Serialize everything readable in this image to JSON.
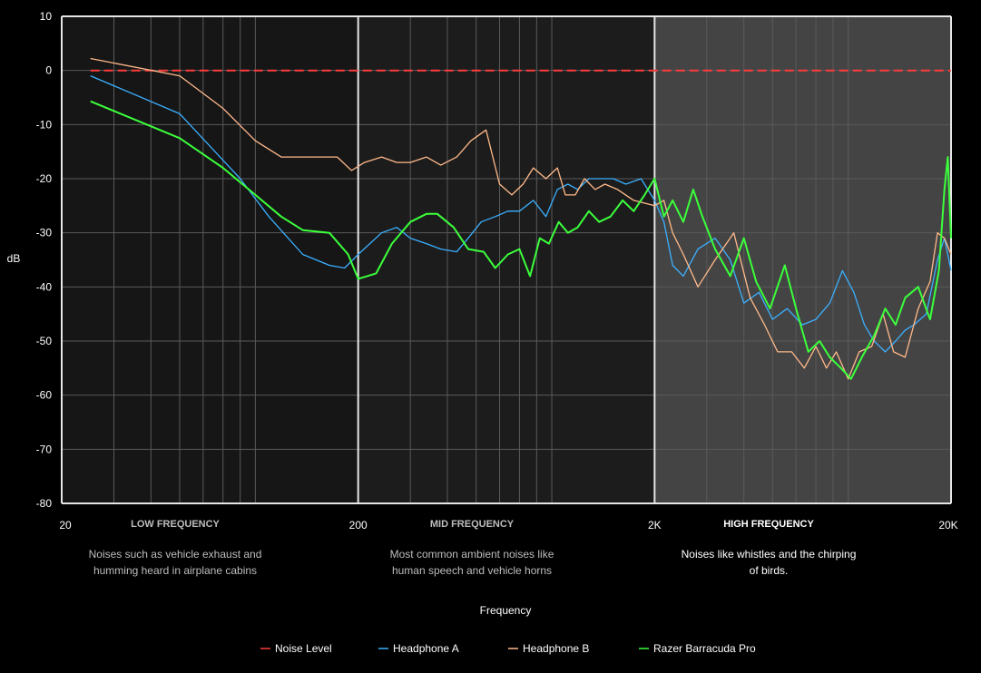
{
  "chart_data": {
    "type": "line",
    "xscale": "log",
    "xlim": [
      20,
      20000
    ],
    "ylim": [
      -80,
      10
    ],
    "ylabel": "dB",
    "xlabel": "Frequency",
    "xticks": [
      {
        "value": 20,
        "label": "20"
      },
      {
        "value": 200,
        "label": "200"
      },
      {
        "value": 2000,
        "label": "2K"
      },
      {
        "value": 20000,
        "label": "20K"
      }
    ],
    "yticks": [
      10,
      0,
      -10,
      -20,
      -30,
      -40,
      -50,
      -60,
      -70,
      -80
    ],
    "grid": true,
    "legend_placement": "bottom-center",
    "bands": [
      {
        "from": 20,
        "to": 200,
        "title": "LOW FREQUENCY",
        "description": [
          "Noises such as vehicle exhaust and",
          "humming heard in airplane cabins"
        ],
        "highlight": false,
        "color": "#161616"
      },
      {
        "from": 200,
        "to": 2000,
        "title": "MID FREQUENCY",
        "description": [
          "Most common ambient noises like",
          "human speech and vehicle horns"
        ],
        "highlight": false,
        "color": "#1c1c1c"
      },
      {
        "from": 2000,
        "to": 20000,
        "title": "HIGH FREQUENCY",
        "description": [
          "Noises like whistles and the chirping",
          "of birds."
        ],
        "highlight": true,
        "color": "#444444"
      }
    ],
    "series": [
      {
        "name": "Noise Level",
        "color": "#ff3b3b",
        "dashed": true,
        "points": [
          [
            25,
            0
          ],
          [
            20000,
            0
          ]
        ]
      },
      {
        "name": "Headphone A",
        "color": "#3bb0ff",
        "dashed": false,
        "points": [
          [
            25,
            -1
          ],
          [
            50,
            -8
          ],
          [
            80,
            -20
          ],
          [
            100,
            -27
          ],
          [
            130,
            -34
          ],
          [
            160,
            -36
          ],
          [
            180,
            -36.5
          ],
          [
            200,
            -34
          ],
          [
            240,
            -30
          ],
          [
            270,
            -29
          ],
          [
            300,
            -31
          ],
          [
            340,
            -32
          ],
          [
            380,
            -33
          ],
          [
            430,
            -33.5
          ],
          [
            470,
            -31
          ],
          [
            520,
            -28
          ],
          [
            580,
            -27
          ],
          [
            640,
            -26
          ],
          [
            700,
            -26
          ],
          [
            780,
            -24
          ],
          [
            860,
            -27
          ],
          [
            940,
            -22
          ],
          [
            1020,
            -21
          ],
          [
            1100,
            -22
          ],
          [
            1200,
            -20
          ],
          [
            1300,
            -20
          ],
          [
            1450,
            -20
          ],
          [
            1600,
            -21
          ],
          [
            1800,
            -20
          ],
          [
            2000,
            -24
          ],
          [
            2150,
            -28
          ],
          [
            2300,
            -36
          ],
          [
            2500,
            -38
          ],
          [
            2800,
            -33
          ],
          [
            3200,
            -31
          ],
          [
            3600,
            -35
          ],
          [
            4000,
            -43
          ],
          [
            4500,
            -41
          ],
          [
            5000,
            -46
          ],
          [
            5600,
            -44
          ],
          [
            6300,
            -47
          ],
          [
            7000,
            -46
          ],
          [
            7800,
            -43
          ],
          [
            8600,
            -37
          ],
          [
            9400,
            -41
          ],
          [
            10200,
            -47
          ],
          [
            11000,
            -50
          ],
          [
            12000,
            -52
          ],
          [
            13000,
            -50
          ],
          [
            14000,
            -48
          ],
          [
            15000,
            -47
          ],
          [
            16500,
            -45
          ],
          [
            18000,
            -35
          ],
          [
            19000,
            -31
          ],
          [
            20000,
            -37
          ]
        ]
      },
      {
        "name": "Headphone B",
        "color": "#ffb98a",
        "dashed": false,
        "points": [
          [
            25,
            2.2
          ],
          [
            50,
            -1
          ],
          [
            70,
            -7
          ],
          [
            90,
            -13
          ],
          [
            110,
            -16
          ],
          [
            140,
            -16
          ],
          [
            170,
            -16
          ],
          [
            190,
            -18.5
          ],
          [
            210,
            -17
          ],
          [
            240,
            -16
          ],
          [
            270,
            -17
          ],
          [
            300,
            -17
          ],
          [
            340,
            -16
          ],
          [
            380,
            -17.5
          ],
          [
            430,
            -16
          ],
          [
            480,
            -13
          ],
          [
            540,
            -11
          ],
          [
            600,
            -21
          ],
          [
            660,
            -23
          ],
          [
            720,
            -21
          ],
          [
            780,
            -18
          ],
          [
            860,
            -20
          ],
          [
            940,
            -18
          ],
          [
            1000,
            -23
          ],
          [
            1080,
            -23
          ],
          [
            1160,
            -20
          ],
          [
            1260,
            -22
          ],
          [
            1360,
            -21
          ],
          [
            1500,
            -22
          ],
          [
            1700,
            -24
          ],
          [
            2000,
            -25
          ],
          [
            2150,
            -24
          ],
          [
            2300,
            -30
          ],
          [
            2500,
            -34
          ],
          [
            2800,
            -40
          ],
          [
            3200,
            -35
          ],
          [
            3700,
            -30
          ],
          [
            4200,
            -42
          ],
          [
            4700,
            -47
          ],
          [
            5200,
            -52
          ],
          [
            5800,
            -52
          ],
          [
            6400,
            -55
          ],
          [
            7000,
            -51
          ],
          [
            7600,
            -55
          ],
          [
            8200,
            -52
          ],
          [
            9000,
            -57
          ],
          [
            9800,
            -52
          ],
          [
            10800,
            -51
          ],
          [
            11800,
            -45
          ],
          [
            12800,
            -52
          ],
          [
            14000,
            -53
          ],
          [
            15500,
            -44
          ],
          [
            17000,
            -39
          ],
          [
            18000,
            -30
          ],
          [
            19000,
            -31
          ],
          [
            20000,
            -34
          ]
        ]
      },
      {
        "name": "Razer Barracuda Pro",
        "color": "#3bff3b",
        "dashed": false,
        "points": [
          [
            25,
            -5.7
          ],
          [
            50,
            -12.5
          ],
          [
            70,
            -18
          ],
          [
            90,
            -23
          ],
          [
            110,
            -27
          ],
          [
            130,
            -29.5
          ],
          [
            160,
            -30
          ],
          [
            185,
            -34
          ],
          [
            200,
            -38.5
          ],
          [
            230,
            -37.5
          ],
          [
            260,
            -32
          ],
          [
            300,
            -28
          ],
          [
            340,
            -26.5
          ],
          [
            370,
            -26.5
          ],
          [
            420,
            -29
          ],
          [
            470,
            -33
          ],
          [
            530,
            -33.5
          ],
          [
            580,
            -36.5
          ],
          [
            640,
            -34
          ],
          [
            700,
            -33
          ],
          [
            760,
            -38
          ],
          [
            820,
            -31
          ],
          [
            880,
            -32
          ],
          [
            950,
            -28
          ],
          [
            1020,
            -30
          ],
          [
            1100,
            -29
          ],
          [
            1200,
            -26
          ],
          [
            1300,
            -28
          ],
          [
            1420,
            -27
          ],
          [
            1560,
            -24
          ],
          [
            1700,
            -26
          ],
          [
            1850,
            -23
          ],
          [
            2000,
            -20
          ],
          [
            2150,
            -27
          ],
          [
            2300,
            -24
          ],
          [
            2500,
            -28
          ],
          [
            2700,
            -22
          ],
          [
            2900,
            -27
          ],
          [
            3200,
            -33
          ],
          [
            3600,
            -38
          ],
          [
            4000,
            -31
          ],
          [
            4400,
            -39
          ],
          [
            4900,
            -44
          ],
          [
            5500,
            -36
          ],
          [
            6000,
            -44
          ],
          [
            6600,
            -52
          ],
          [
            7200,
            -50
          ],
          [
            7800,
            -53
          ],
          [
            8500,
            -55
          ],
          [
            9200,
            -57
          ],
          [
            10000,
            -53
          ],
          [
            11000,
            -49
          ],
          [
            12000,
            -44
          ],
          [
            13000,
            -47
          ],
          [
            14000,
            -42
          ],
          [
            15500,
            -40
          ],
          [
            17000,
            -46
          ],
          [
            18200,
            -37
          ],
          [
            19000,
            -22
          ],
          [
            19500,
            -16
          ],
          [
            20000,
            -31
          ]
        ]
      }
    ]
  }
}
